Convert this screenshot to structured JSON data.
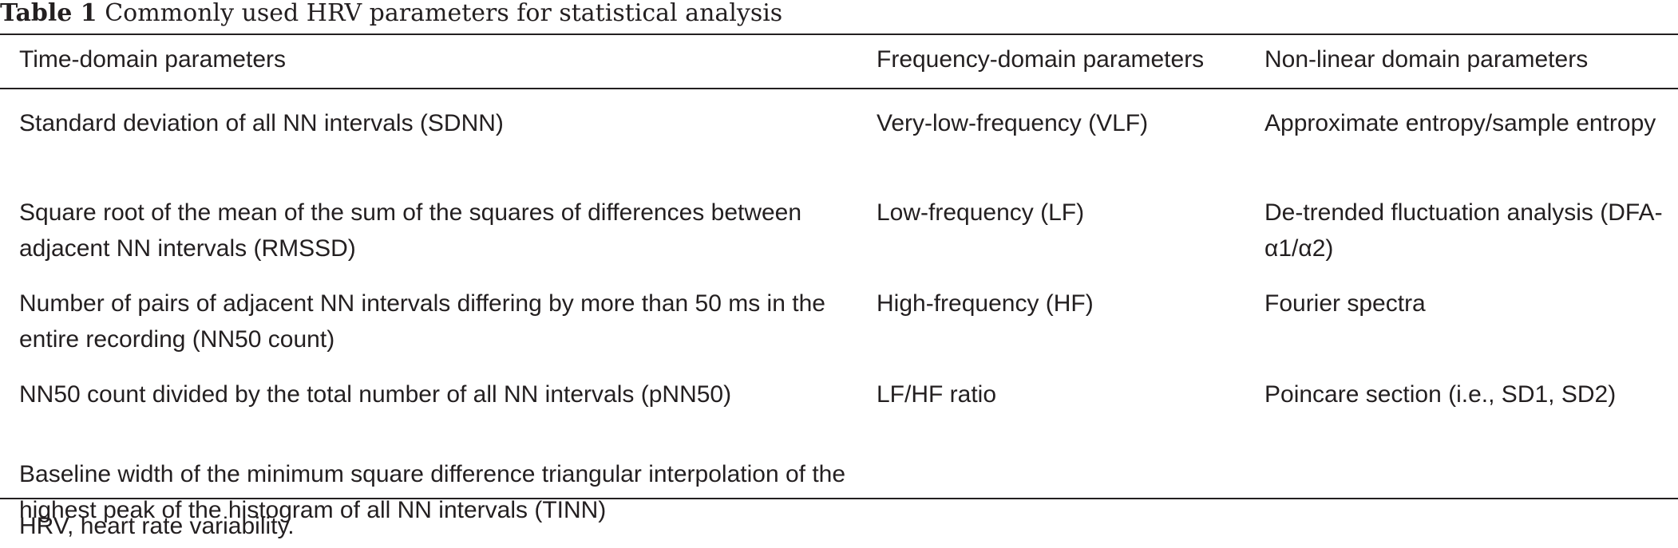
{
  "caption": {
    "label": "Table 1",
    "title": "Commonly used HRV parameters for statistical analysis"
  },
  "headers": [
    "Time-domain parameters",
    "Frequency-domain parameters",
    "Non-linear domain parameters"
  ],
  "rows": [
    [
      "Standard deviation of all NN intervals (SDNN)",
      "Very-low-frequency (VLF)",
      "Approximate entropy/sample entropy"
    ],
    [
      "Square root of the mean of the sum of the squares of differences between adjacent NN intervals (RMSSD)",
      "Low-frequency (LF)",
      "De-trended fluctuation analysis (DFA-α1/α2)"
    ],
    [
      "Number of pairs of adjacent NN intervals differing by more than 50 ms in the entire recording (NN50 count)",
      "High-frequency (HF)",
      "Fourier spectra"
    ],
    [
      "NN50 count divided by the total number of all NN intervals (pNN50)",
      "LF/HF ratio",
      "Poincare section (i.e., SD1, SD2)"
    ],
    [
      "Baseline width of the minimum square difference triangular interpolation of the highest peak of the histogram of all NN intervals (TINN)",
      "",
      ""
    ]
  ],
  "footnote": "HRV, heart rate variability."
}
